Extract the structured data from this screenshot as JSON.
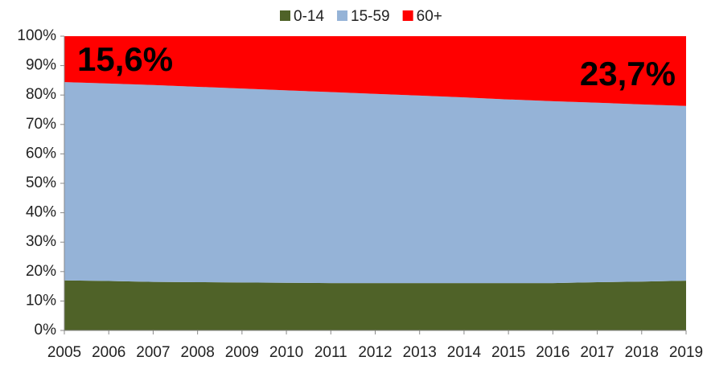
{
  "chart_data": {
    "type": "area",
    "stacked": true,
    "categories": [
      "2005",
      "2006",
      "2007",
      "2008",
      "2009",
      "2010",
      "2011",
      "2012",
      "2013",
      "2014",
      "2015",
      "2016",
      "2017",
      "2018",
      "2019"
    ],
    "series": [
      {
        "name": "0-14",
        "color": "#4f6228",
        "values": [
          17.0,
          16.8,
          16.5,
          16.4,
          16.3,
          16.2,
          16.1,
          16.1,
          16.1,
          16.1,
          16.1,
          16.1,
          16.4,
          16.6,
          16.9
        ]
      },
      {
        "name": "15-59",
        "color": "#95b3d7",
        "values": [
          67.4,
          67.1,
          66.9,
          66.4,
          65.9,
          65.4,
          64.9,
          64.3,
          63.7,
          63.1,
          62.4,
          61.8,
          61.0,
          60.2,
          59.4
        ]
      },
      {
        "name": "60+",
        "color": "#ff0000",
        "values": [
          15.6,
          16.1,
          16.6,
          17.2,
          17.8,
          18.4,
          19.0,
          19.6,
          20.2,
          20.8,
          21.5,
          22.1,
          22.6,
          23.2,
          23.7
        ]
      }
    ],
    "ylim": [
      0,
      100
    ],
    "yticks": [
      {
        "value": 0,
        "label": "0%"
      },
      {
        "value": 10,
        "label": "10%"
      },
      {
        "value": 20,
        "label": "20%"
      },
      {
        "value": 30,
        "label": "30%"
      },
      {
        "value": 40,
        "label": "40%"
      },
      {
        "value": 50,
        "label": "50%"
      },
      {
        "value": 60,
        "label": "60%"
      },
      {
        "value": 70,
        "label": "70%"
      },
      {
        "value": 80,
        "label": "80%"
      },
      {
        "value": 90,
        "label": "90%"
      },
      {
        "value": 100,
        "label": "100%"
      }
    ],
    "annotations": [
      "15,6%",
      "23,7%"
    ],
    "legend": "top"
  }
}
